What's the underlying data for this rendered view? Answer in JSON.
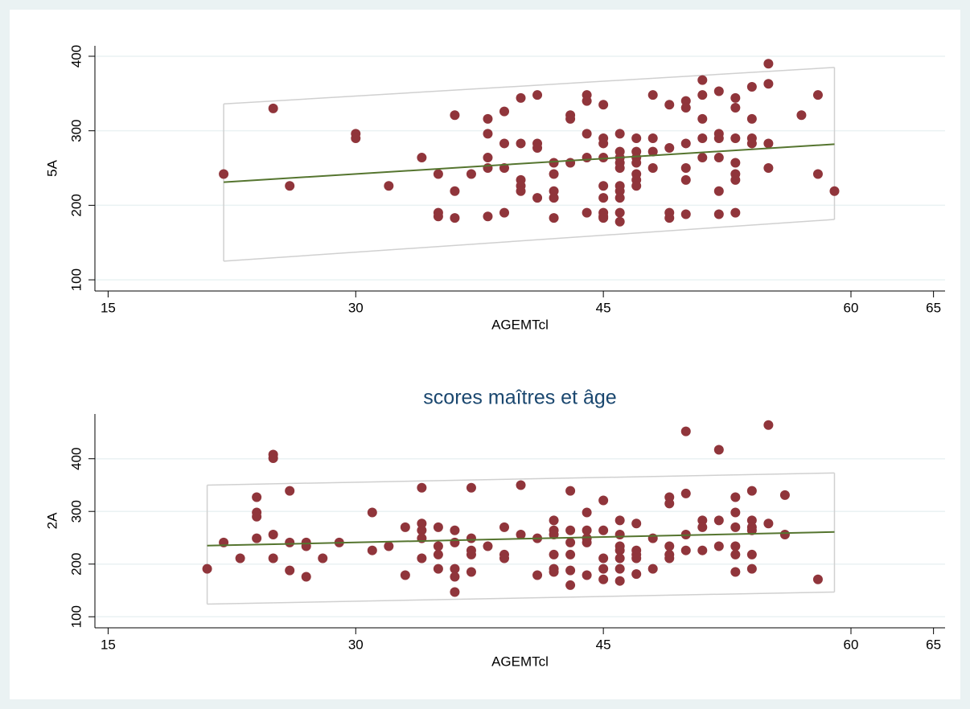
{
  "chart_data": [
    {
      "type": "scatter",
      "xlabel": "AGEMTcl",
      "ylabel": "5A",
      "xlim": [
        14.2,
        65.7
      ],
      "xticks": [
        15,
        30,
        45,
        60,
        65
      ],
      "ylim": [
        85,
        414
      ],
      "yticks": [
        100,
        200,
        300,
        400
      ],
      "grid": true,
      "color": "#90353b",
      "x": [
        22,
        25,
        26,
        30,
        30,
        32,
        34,
        35,
        35,
        35,
        36,
        36,
        36,
        37,
        38,
        38,
        38,
        38,
        38,
        39,
        39,
        39,
        39,
        40,
        40,
        40,
        40,
        40,
        41,
        41,
        41,
        41,
        42,
        42,
        42,
        42,
        42,
        43,
        43,
        43,
        44,
        44,
        44,
        44,
        44,
        45,
        45,
        45,
        45,
        45,
        45,
        45,
        45,
        45,
        46,
        46,
        46,
        46,
        46,
        46,
        46,
        46,
        46,
        46,
        47,
        47,
        47,
        47,
        47,
        47,
        47,
        48,
        48,
        48,
        48,
        49,
        49,
        49,
        49,
        50,
        50,
        50,
        50,
        50,
        50,
        51,
        51,
        51,
        51,
        51,
        52,
        52,
        52,
        52,
        52,
        52,
        53,
        53,
        53,
        53,
        53,
        53,
        53,
        54,
        54,
        54,
        54,
        55,
        55,
        55,
        55,
        57,
        58,
        58,
        59
      ],
      "values": [
        242,
        330,
        226,
        296,
        290,
        226,
        264,
        242,
        190,
        185,
        321,
        219,
        183,
        242,
        316,
        296,
        264,
        250,
        185,
        326,
        283,
        250,
        190,
        344,
        283,
        234,
        226,
        219,
        348,
        283,
        277,
        210,
        257,
        242,
        219,
        210,
        183,
        321,
        316,
        257,
        348,
        340,
        296,
        264,
        190,
        335,
        290,
        283,
        264,
        226,
        210,
        190,
        185,
        183,
        296,
        272,
        264,
        257,
        250,
        226,
        219,
        210,
        190,
        178,
        290,
        272,
        264,
        257,
        242,
        234,
        226,
        348,
        290,
        272,
        250,
        335,
        277,
        190,
        183,
        340,
        331,
        283,
        250,
        234,
        188,
        368,
        348,
        316,
        290,
        264,
        353,
        296,
        290,
        264,
        219,
        188,
        344,
        331,
        290,
        257,
        242,
        234,
        190,
        359,
        316,
        290,
        283,
        390,
        363,
        283,
        250,
        321,
        348,
        242,
        219
      ],
      "fit": {
        "x": [
          22,
          59
        ],
        "values": [
          231,
          282
        ],
        "color": "#55752f"
      },
      "band": {
        "x": [
          22,
          59
        ],
        "upper": [
          336,
          385
        ],
        "lower": [
          125,
          181
        ],
        "color": "#d0d0d0"
      }
    },
    {
      "type": "scatter",
      "title": "scores maîtres et âge",
      "xlabel": "AGEMTcl",
      "ylabel": "2A",
      "xlim": [
        14.2,
        65.7
      ],
      "xticks": [
        15,
        30,
        45,
        60,
        65
      ],
      "ylim": [
        79,
        485
      ],
      "yticks": [
        100,
        200,
        300,
        400
      ],
      "grid": true,
      "color": "#90353b",
      "x": [
        21,
        22,
        23,
        24,
        24,
        24,
        24,
        25,
        25,
        25,
        25,
        26,
        26,
        26,
        27,
        27,
        27,
        28,
        29,
        31,
        31,
        32,
        33,
        33,
        34,
        34,
        34,
        34,
        34,
        35,
        35,
        35,
        35,
        36,
        36,
        36,
        36,
        36,
        37,
        37,
        37,
        37,
        37,
        38,
        39,
        39,
        39,
        40,
        40,
        41,
        41,
        42,
        42,
        42,
        42,
        42,
        42,
        43,
        43,
        43,
        43,
        43,
        43,
        44,
        44,
        44,
        44,
        44,
        45,
        45,
        45,
        45,
        45,
        46,
        46,
        46,
        46,
        46,
        46,
        46,
        47,
        47,
        47,
        47,
        47,
        48,
        48,
        49,
        49,
        49,
        49,
        49,
        50,
        50,
        50,
        50,
        51,
        51,
        51,
        52,
        52,
        52,
        53,
        53,
        53,
        53,
        53,
        53,
        54,
        54,
        54,
        54,
        54,
        54,
        55,
        55,
        56,
        56,
        58
      ],
      "values": [
        191,
        241,
        211,
        327,
        298,
        290,
        249,
        408,
        401,
        256,
        211,
        339,
        241,
        188,
        241,
        234,
        176,
        211,
        241,
        298,
        226,
        234,
        270,
        179,
        345,
        277,
        264,
        249,
        211,
        270,
        234,
        218,
        191,
        264,
        241,
        191,
        176,
        147,
        345,
        249,
        226,
        218,
        185,
        234,
        270,
        218,
        211,
        350,
        256,
        249,
        179,
        283,
        264,
        256,
        218,
        191,
        185,
        339,
        264,
        241,
        218,
        188,
        160,
        298,
        264,
        249,
        241,
        179,
        321,
        264,
        211,
        191,
        171,
        283,
        256,
        234,
        226,
        211,
        191,
        168,
        277,
        226,
        218,
        211,
        181,
        249,
        191,
        327,
        315,
        234,
        218,
        211,
        452,
        334,
        256,
        226,
        283,
        270,
        226,
        417,
        283,
        234,
        327,
        298,
        270,
        234,
        218,
        185,
        339,
        283,
        270,
        264,
        218,
        191,
        464,
        277,
        331,
        256,
        171
      ],
      "fit": {
        "x": [
          21,
          59
        ],
        "values": [
          235,
          261
        ],
        "color": "#55752f"
      },
      "band": {
        "x": [
          21,
          59
        ],
        "upper": [
          350,
          373
        ],
        "lower": [
          124,
          147
        ],
        "color": "#d0d0d0"
      }
    }
  ]
}
